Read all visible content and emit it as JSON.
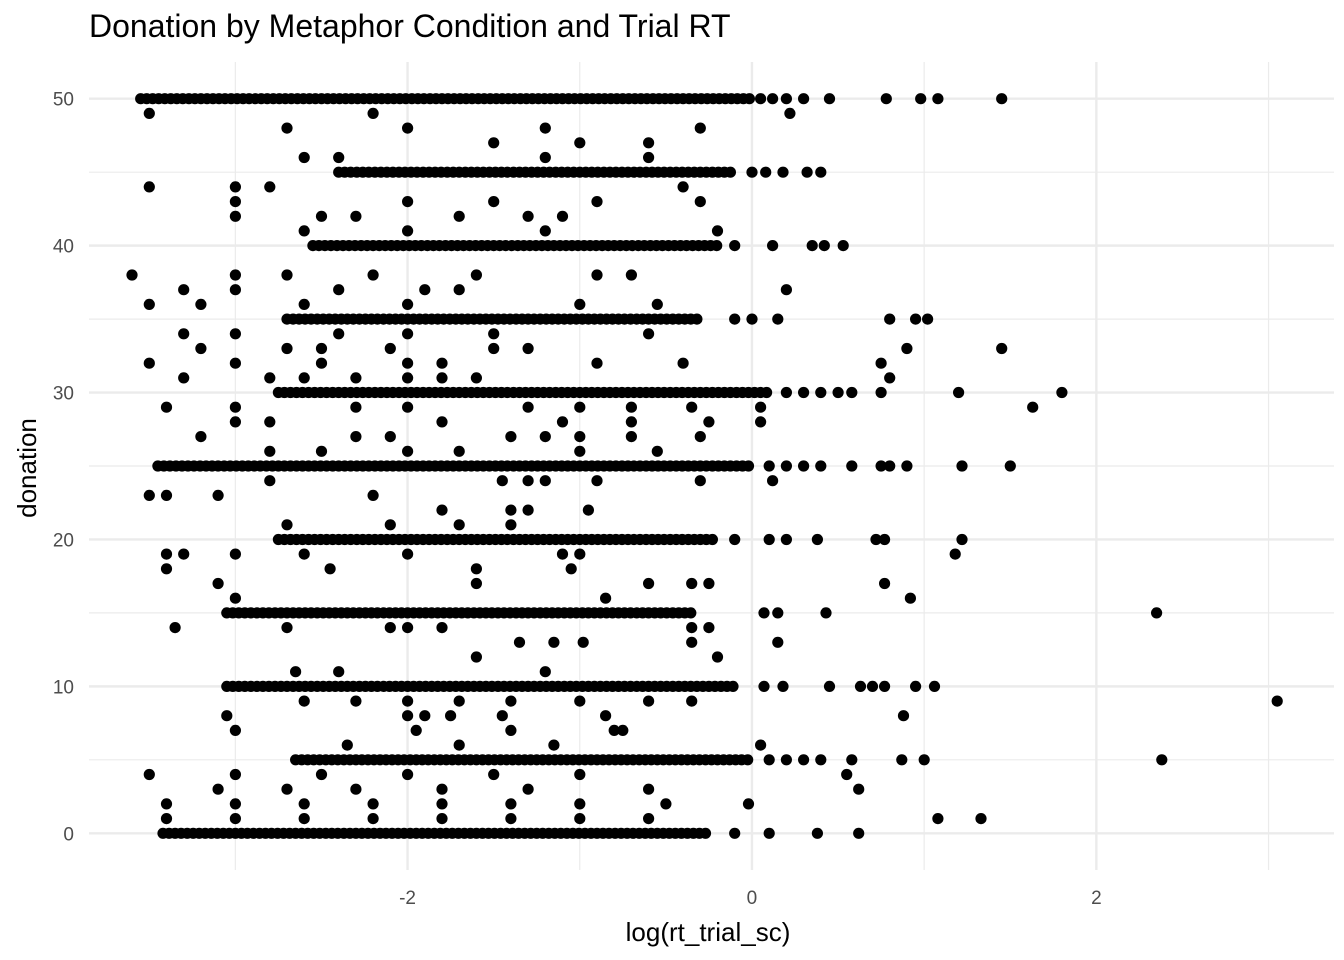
{
  "chart_data": {
    "type": "scatter",
    "title": "Donation by Metaphor Condition and Trial RT",
    "xlabel": "log(rt_trial_sc)",
    "ylabel": "donation",
    "xlim": [
      -3.85,
      3.38
    ],
    "ylim": [
      -2.5,
      52.5
    ],
    "x_ticks": [
      -2,
      0,
      2
    ],
    "x_tick_labels": [
      "-2",
      "0",
      "2"
    ],
    "y_ticks": [
      0,
      10,
      20,
      30,
      40,
      50
    ],
    "y_tick_labels": [
      "0",
      "10",
      "20",
      "30",
      "40",
      "50"
    ],
    "grid": true,
    "theme": "minimal",
    "point_color": "#000000",
    "bands": [
      {
        "y": 50,
        "x_range": [
          -3.55,
          0.0
        ],
        "outliers": [
          0.05,
          0.12,
          0.2,
          0.3,
          0.45,
          0.78,
          0.98,
          1.08,
          1.45
        ]
      },
      {
        "y": 45,
        "x_range": [
          -2.4,
          -0.1
        ],
        "outliers": [
          0.0,
          0.08,
          0.18,
          0.32,
          0.4
        ]
      },
      {
        "y": 40,
        "x_range": [
          -2.55,
          -0.2
        ],
        "outliers": [
          -0.1,
          0.12,
          0.35,
          0.42,
          0.53
        ]
      },
      {
        "y": 35,
        "x_range": [
          -2.7,
          -0.3
        ],
        "outliers": [
          -0.1,
          0.0,
          0.15,
          0.8,
          0.95,
          1.02
        ]
      },
      {
        "y": 30,
        "x_range": [
          -2.75,
          0.1
        ],
        "outliers": [
          0.2,
          0.3,
          0.4,
          0.5,
          0.58,
          0.75,
          1.2,
          1.8
        ]
      },
      {
        "y": 25,
        "x_range": [
          -3.45,
          0.0
        ],
        "outliers": [
          0.1,
          0.2,
          0.3,
          0.4,
          0.58,
          0.75,
          0.8,
          0.9,
          1.22,
          1.5
        ]
      },
      {
        "y": 20,
        "x_range": [
          -2.75,
          -0.2
        ],
        "outliers": [
          -0.1,
          0.1,
          0.2,
          0.38,
          0.72,
          0.77,
          1.22
        ]
      },
      {
        "y": 15,
        "x_range": [
          -3.05,
          -0.35
        ],
        "outliers": [
          0.07,
          0.15,
          0.43,
          2.35
        ]
      },
      {
        "y": 10,
        "x_range": [
          -3.05,
          -0.1
        ],
        "outliers": [
          0.07,
          0.18,
          0.45,
          0.63,
          0.7,
          0.77,
          0.95,
          1.06
        ]
      },
      {
        "y": 5,
        "x_range": [
          -2.65,
          0.0
        ],
        "outliers": [
          0.1,
          0.2,
          0.3,
          0.4,
          0.58,
          0.87,
          1.0,
          2.38
        ]
      },
      {
        "y": 0,
        "x_range": [
          -3.42,
          -0.25
        ],
        "outliers": [
          -0.1,
          0.1,
          0.38,
          0.62
        ]
      }
    ],
    "scatter_points": [
      {
        "x": -3.5,
        "y": 49
      },
      {
        "x": -2.7,
        "y": 48
      },
      {
        "x": -2.0,
        "y": 48
      },
      {
        "x": -1.2,
        "y": 48
      },
      {
        "x": -0.3,
        "y": 48
      },
      {
        "x": -2.2,
        "y": 49
      },
      {
        "x": 0.22,
        "y": 49
      },
      {
        "x": -1.0,
        "y": 47
      },
      {
        "x": -0.6,
        "y": 47
      },
      {
        "x": -1.5,
        "y": 47
      },
      {
        "x": -2.6,
        "y": 46
      },
      {
        "x": -2.4,
        "y": 46
      },
      {
        "x": -1.2,
        "y": 46
      },
      {
        "x": -0.6,
        "y": 46
      },
      {
        "x": -3.5,
        "y": 44
      },
      {
        "x": -2.8,
        "y": 44
      },
      {
        "x": -3.0,
        "y": 44
      },
      {
        "x": -0.4,
        "y": 44
      },
      {
        "x": -3.0,
        "y": 43
      },
      {
        "x": -2.0,
        "y": 43
      },
      {
        "x": -1.5,
        "y": 43
      },
      {
        "x": -0.3,
        "y": 43
      },
      {
        "x": -0.9,
        "y": 43
      },
      {
        "x": -3.0,
        "y": 42
      },
      {
        "x": -2.5,
        "y": 42
      },
      {
        "x": -2.3,
        "y": 42
      },
      {
        "x": -1.7,
        "y": 42
      },
      {
        "x": -1.3,
        "y": 42
      },
      {
        "x": -1.1,
        "y": 42
      },
      {
        "x": -2.0,
        "y": 41
      },
      {
        "x": -1.2,
        "y": 41
      },
      {
        "x": -0.2,
        "y": 41
      },
      {
        "x": -2.6,
        "y": 41
      },
      {
        "x": -3.6,
        "y": 38
      },
      {
        "x": -3.0,
        "y": 38
      },
      {
        "x": -2.7,
        "y": 38
      },
      {
        "x": -2.2,
        "y": 38
      },
      {
        "x": -1.6,
        "y": 38
      },
      {
        "x": -0.9,
        "y": 38
      },
      {
        "x": -0.7,
        "y": 38
      },
      {
        "x": -3.3,
        "y": 37
      },
      {
        "x": -2.4,
        "y": 37
      },
      {
        "x": -1.9,
        "y": 37
      },
      {
        "x": -1.7,
        "y": 37
      },
      {
        "x": 0.2,
        "y": 37
      },
      {
        "x": -3.0,
        "y": 37
      },
      {
        "x": -3.5,
        "y": 36
      },
      {
        "x": -2.6,
        "y": 36
      },
      {
        "x": -2.0,
        "y": 36
      },
      {
        "x": -1.0,
        "y": 36
      },
      {
        "x": -0.55,
        "y": 36
      },
      {
        "x": -3.2,
        "y": 36
      },
      {
        "x": -3.0,
        "y": 34
      },
      {
        "x": -2.4,
        "y": 34
      },
      {
        "x": -2.0,
        "y": 34
      },
      {
        "x": -1.5,
        "y": 34
      },
      {
        "x": -0.6,
        "y": 34
      },
      {
        "x": -3.3,
        "y": 34
      },
      {
        "x": -3.2,
        "y": 33
      },
      {
        "x": -2.7,
        "y": 33
      },
      {
        "x": -2.5,
        "y": 33
      },
      {
        "x": -2.1,
        "y": 33
      },
      {
        "x": -1.5,
        "y": 33
      },
      {
        "x": -1.3,
        "y": 33
      },
      {
        "x": 0.9,
        "y": 33
      },
      {
        "x": 1.45,
        "y": 33
      },
      {
        "x": -3.5,
        "y": 32
      },
      {
        "x": -3.0,
        "y": 32
      },
      {
        "x": -2.5,
        "y": 32
      },
      {
        "x": -2.0,
        "y": 32
      },
      {
        "x": -1.8,
        "y": 32
      },
      {
        "x": -0.9,
        "y": 32
      },
      {
        "x": -0.4,
        "y": 32
      },
      {
        "x": 0.75,
        "y": 32
      },
      {
        "x": -3.3,
        "y": 31
      },
      {
        "x": -2.8,
        "y": 31
      },
      {
        "x": -2.6,
        "y": 31
      },
      {
        "x": -2.3,
        "y": 31
      },
      {
        "x": -2.0,
        "y": 31
      },
      {
        "x": -1.8,
        "y": 31
      },
      {
        "x": -1.6,
        "y": 31
      },
      {
        "x": 0.8,
        "y": 31
      },
      {
        "x": -3.4,
        "y": 29
      },
      {
        "x": -3.0,
        "y": 29
      },
      {
        "x": -2.3,
        "y": 29
      },
      {
        "x": -2.0,
        "y": 29
      },
      {
        "x": -1.3,
        "y": 29
      },
      {
        "x": -1.0,
        "y": 29
      },
      {
        "x": -0.7,
        "y": 29
      },
      {
        "x": -0.35,
        "y": 29
      },
      {
        "x": 0.05,
        "y": 29
      },
      {
        "x": 1.63,
        "y": 29
      },
      {
        "x": -3.0,
        "y": 28
      },
      {
        "x": -2.8,
        "y": 28
      },
      {
        "x": -1.8,
        "y": 28
      },
      {
        "x": -1.1,
        "y": 28
      },
      {
        "x": -0.7,
        "y": 28
      },
      {
        "x": -0.25,
        "y": 28
      },
      {
        "x": 0.05,
        "y": 28
      },
      {
        "x": -3.2,
        "y": 27
      },
      {
        "x": -2.3,
        "y": 27
      },
      {
        "x": -2.1,
        "y": 27
      },
      {
        "x": -1.4,
        "y": 27
      },
      {
        "x": -1.2,
        "y": 27
      },
      {
        "x": -1.0,
        "y": 27
      },
      {
        "x": -0.7,
        "y": 27
      },
      {
        "x": -0.3,
        "y": 27
      },
      {
        "x": -2.8,
        "y": 26
      },
      {
        "x": -2.5,
        "y": 26
      },
      {
        "x": -2.0,
        "y": 26
      },
      {
        "x": -1.7,
        "y": 26
      },
      {
        "x": -1.0,
        "y": 26
      },
      {
        "x": -0.55,
        "y": 26
      },
      {
        "x": -2.8,
        "y": 24
      },
      {
        "x": -1.45,
        "y": 24
      },
      {
        "x": -1.3,
        "y": 24
      },
      {
        "x": -1.2,
        "y": 24
      },
      {
        "x": -0.9,
        "y": 24
      },
      {
        "x": -0.3,
        "y": 24
      },
      {
        "x": 0.12,
        "y": 24
      },
      {
        "x": -3.5,
        "y": 23
      },
      {
        "x": -3.4,
        "y": 23
      },
      {
        "x": -3.1,
        "y": 23
      },
      {
        "x": -2.2,
        "y": 23
      },
      {
        "x": -1.8,
        "y": 22
      },
      {
        "x": -1.4,
        "y": 22
      },
      {
        "x": -1.3,
        "y": 22
      },
      {
        "x": -0.95,
        "y": 22
      },
      {
        "x": -2.7,
        "y": 21
      },
      {
        "x": -2.1,
        "y": 21
      },
      {
        "x": -1.7,
        "y": 21
      },
      {
        "x": -1.4,
        "y": 21
      },
      {
        "x": -3.4,
        "y": 19
      },
      {
        "x": -3.3,
        "y": 19
      },
      {
        "x": -3.0,
        "y": 19
      },
      {
        "x": -2.6,
        "y": 19
      },
      {
        "x": -2.0,
        "y": 19
      },
      {
        "x": -1.1,
        "y": 19
      },
      {
        "x": -1.0,
        "y": 19
      },
      {
        "x": 1.18,
        "y": 19
      },
      {
        "x": -3.4,
        "y": 18
      },
      {
        "x": -2.45,
        "y": 18
      },
      {
        "x": -1.6,
        "y": 18
      },
      {
        "x": -1.05,
        "y": 18
      },
      {
        "x": -3.1,
        "y": 17
      },
      {
        "x": -1.6,
        "y": 17
      },
      {
        "x": -0.6,
        "y": 17
      },
      {
        "x": -0.35,
        "y": 17
      },
      {
        "x": -0.25,
        "y": 17
      },
      {
        "x": 0.77,
        "y": 17
      },
      {
        "x": -3.0,
        "y": 16
      },
      {
        "x": -0.85,
        "y": 16
      },
      {
        "x": 0.92,
        "y": 16
      },
      {
        "x": -3.35,
        "y": 14
      },
      {
        "x": -2.7,
        "y": 14
      },
      {
        "x": -2.1,
        "y": 14
      },
      {
        "x": -2.0,
        "y": 14
      },
      {
        "x": -1.8,
        "y": 14
      },
      {
        "x": -0.35,
        "y": 14
      },
      {
        "x": -0.25,
        "y": 14
      },
      {
        "x": -1.35,
        "y": 13
      },
      {
        "x": -1.15,
        "y": 13
      },
      {
        "x": -0.98,
        "y": 13
      },
      {
        "x": -0.35,
        "y": 13
      },
      {
        "x": 0.15,
        "y": 13
      },
      {
        "x": -1.6,
        "y": 12
      },
      {
        "x": -0.2,
        "y": 12
      },
      {
        "x": -2.65,
        "y": 11
      },
      {
        "x": -2.4,
        "y": 11
      },
      {
        "x": -1.2,
        "y": 11
      },
      {
        "x": -2.6,
        "y": 9
      },
      {
        "x": -2.3,
        "y": 9
      },
      {
        "x": -2.0,
        "y": 9
      },
      {
        "x": -1.7,
        "y": 9
      },
      {
        "x": -1.4,
        "y": 9
      },
      {
        "x": -1.0,
        "y": 9
      },
      {
        "x": -0.6,
        "y": 9
      },
      {
        "x": -0.35,
        "y": 9
      },
      {
        "x": 3.05,
        "y": 9
      },
      {
        "x": -3.05,
        "y": 8
      },
      {
        "x": -2.0,
        "y": 8
      },
      {
        "x": -1.9,
        "y": 8
      },
      {
        "x": -1.75,
        "y": 8
      },
      {
        "x": -1.45,
        "y": 8
      },
      {
        "x": -0.85,
        "y": 8
      },
      {
        "x": 0.88,
        "y": 8
      },
      {
        "x": -3.0,
        "y": 7
      },
      {
        "x": -1.95,
        "y": 7
      },
      {
        "x": -1.4,
        "y": 7
      },
      {
        "x": -0.8,
        "y": 7
      },
      {
        "x": -0.75,
        "y": 7
      },
      {
        "x": -2.35,
        "y": 6
      },
      {
        "x": -1.7,
        "y": 6
      },
      {
        "x": -1.15,
        "y": 6
      },
      {
        "x": 0.05,
        "y": 6
      },
      {
        "x": -3.5,
        "y": 4
      },
      {
        "x": -3.0,
        "y": 4
      },
      {
        "x": -2.5,
        "y": 4
      },
      {
        "x": -2.0,
        "y": 4
      },
      {
        "x": -1.5,
        "y": 4
      },
      {
        "x": -1.0,
        "y": 4
      },
      {
        "x": 0.55,
        "y": 4
      },
      {
        "x": -3.1,
        "y": 3
      },
      {
        "x": -2.7,
        "y": 3
      },
      {
        "x": -2.3,
        "y": 3
      },
      {
        "x": -1.8,
        "y": 3
      },
      {
        "x": -1.3,
        "y": 3
      },
      {
        "x": -0.6,
        "y": 3
      },
      {
        "x": 0.62,
        "y": 3
      },
      {
        "x": -3.4,
        "y": 2
      },
      {
        "x": -3.0,
        "y": 2
      },
      {
        "x": -2.6,
        "y": 2
      },
      {
        "x": -2.2,
        "y": 2
      },
      {
        "x": -1.8,
        "y": 2
      },
      {
        "x": -1.4,
        "y": 2
      },
      {
        "x": -1.0,
        "y": 2
      },
      {
        "x": -0.5,
        "y": 2
      },
      {
        "x": -0.02,
        "y": 2
      },
      {
        "x": -3.4,
        "y": 1
      },
      {
        "x": -3.0,
        "y": 1
      },
      {
        "x": -2.6,
        "y": 1
      },
      {
        "x": -2.2,
        "y": 1
      },
      {
        "x": -1.8,
        "y": 1
      },
      {
        "x": -1.4,
        "y": 1
      },
      {
        "x": -1.0,
        "y": 1
      },
      {
        "x": -0.6,
        "y": 1
      },
      {
        "x": 1.08,
        "y": 1
      },
      {
        "x": 1.33,
        "y": 1
      }
    ]
  }
}
